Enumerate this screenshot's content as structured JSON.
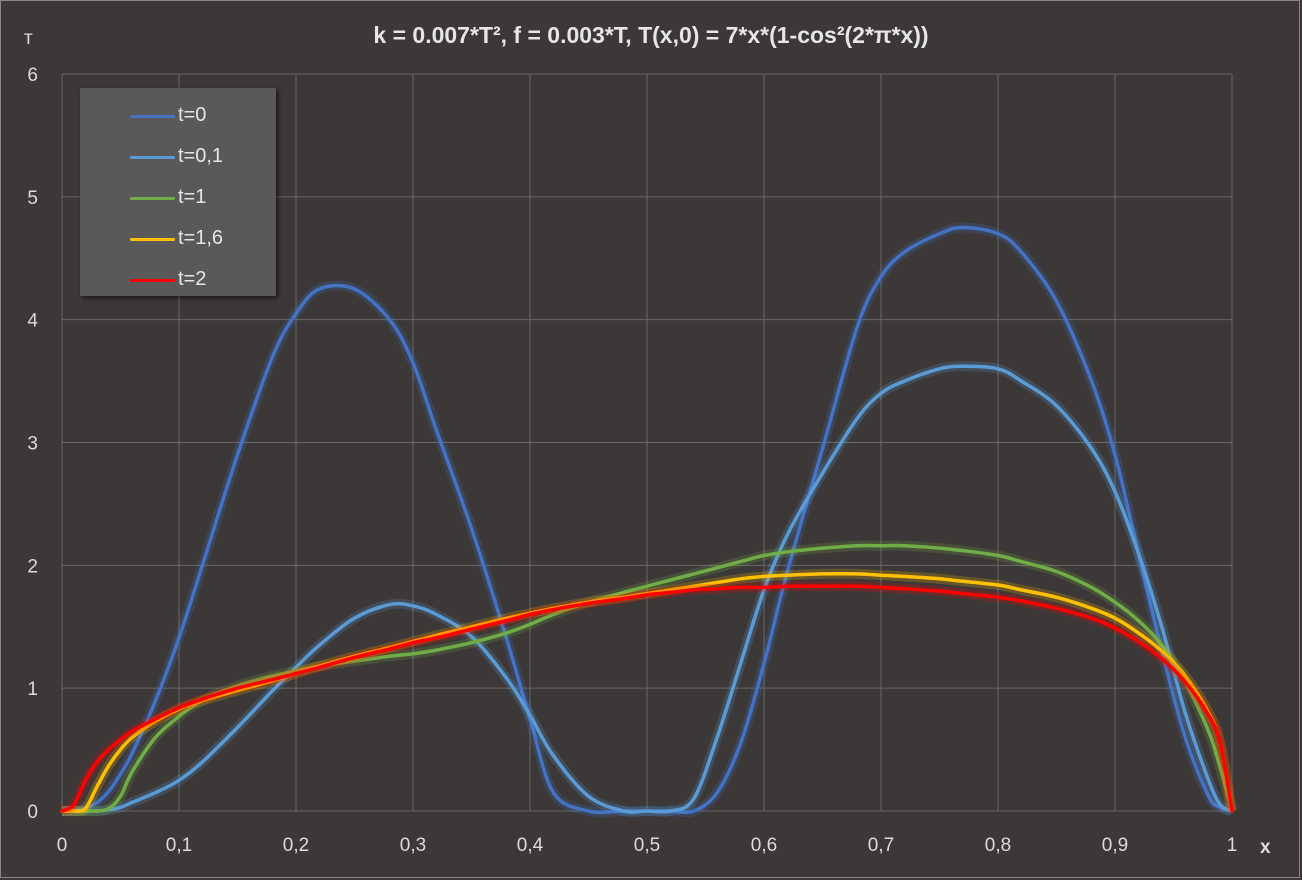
{
  "chart_data": {
    "type": "line",
    "title": "k = 0.007*T², f = 0.003*T,  T(x,0) = 7*x*(1-cos²(2*π*x))",
    "xlabel": "x",
    "ylabel": "т",
    "xlim": [
      0,
      1
    ],
    "ylim": [
      0,
      6
    ],
    "x_ticks": [
      "0",
      "0,1",
      "0,2",
      "0,3",
      "0,4",
      "0,5",
      "0,6",
      "0,7",
      "0,8",
      "0,9",
      "1"
    ],
    "y_ticks": [
      "0",
      "1",
      "2",
      "3",
      "4",
      "5",
      "6"
    ],
    "grid": true,
    "legend_position": "top-left",
    "x": [
      0,
      0.01,
      0.02,
      0.03,
      0.04,
      0.05,
      0.06,
      0.08,
      0.1,
      0.12,
      0.15,
      0.18,
      0.2,
      0.22,
      0.25,
      0.28,
      0.3,
      0.32,
      0.35,
      0.38,
      0.4,
      0.42,
      0.45,
      0.48,
      0.5,
      0.52,
      0.54,
      0.56,
      0.58,
      0.6,
      0.62,
      0.65,
      0.68,
      0.7,
      0.72,
      0.75,
      0.77,
      0.8,
      0.82,
      0.85,
      0.88,
      0.9,
      0.92,
      0.94,
      0.96,
      0.98,
      0.99,
      1
    ],
    "series": [
      {
        "name": "t=0",
        "color": "#4472c4",
        "values": [
          0,
          0.003,
          0.022,
          0.07,
          0.16,
          0.3,
          0.47,
          0.9,
          1.41,
          2.0,
          2.9,
          3.7,
          4.05,
          4.25,
          4.25,
          4.0,
          3.65,
          3.1,
          2.3,
          1.4,
          0.75,
          0.15,
          0.0,
          0.0,
          0.0,
          0.0,
          0.0,
          0.15,
          0.55,
          1.2,
          1.95,
          2.95,
          3.95,
          4.35,
          4.55,
          4.7,
          4.75,
          4.7,
          4.55,
          4.15,
          3.5,
          2.9,
          2.1,
          1.3,
          0.6,
          0.12,
          0.03,
          0
        ]
      },
      {
        "name": "t=0,1",
        "color": "#5b9bd5",
        "values": [
          0,
          0,
          0,
          0,
          0.01,
          0.03,
          0.07,
          0.15,
          0.25,
          0.4,
          0.68,
          0.98,
          1.17,
          1.35,
          1.57,
          1.68,
          1.67,
          1.6,
          1.42,
          1.08,
          0.78,
          0.45,
          0.12,
          0.0,
          0.0,
          0.0,
          0.1,
          0.6,
          1.2,
          1.8,
          2.25,
          2.75,
          3.2,
          3.4,
          3.5,
          3.6,
          3.62,
          3.6,
          3.5,
          3.3,
          2.95,
          2.6,
          2.1,
          1.5,
          0.8,
          0.25,
          0.05,
          0
        ]
      },
      {
        "name": "t=1",
        "color": "#70ad47",
        "values": [
          0,
          0,
          0,
          0,
          0.02,
          0.12,
          0.32,
          0.6,
          0.77,
          0.9,
          1.02,
          1.1,
          1.14,
          1.18,
          1.22,
          1.26,
          1.28,
          1.31,
          1.37,
          1.45,
          1.52,
          1.6,
          1.7,
          1.78,
          1.83,
          1.88,
          1.93,
          1.98,
          2.03,
          2.08,
          2.11,
          2.14,
          2.16,
          2.16,
          2.16,
          2.14,
          2.12,
          2.08,
          2.03,
          1.95,
          1.82,
          1.7,
          1.55,
          1.35,
          1.05,
          0.65,
          0.35,
          0
        ]
      },
      {
        "name": "t=1,6",
        "color": "#ffc000",
        "values": [
          0,
          0,
          0.02,
          0.2,
          0.37,
          0.5,
          0.6,
          0.73,
          0.83,
          0.9,
          0.98,
          1.06,
          1.12,
          1.18,
          1.26,
          1.33,
          1.38,
          1.43,
          1.5,
          1.57,
          1.61,
          1.65,
          1.7,
          1.74,
          1.77,
          1.8,
          1.83,
          1.86,
          1.89,
          1.91,
          1.92,
          1.93,
          1.93,
          1.92,
          1.91,
          1.89,
          1.87,
          1.84,
          1.8,
          1.74,
          1.65,
          1.57,
          1.45,
          1.3,
          1.1,
          0.8,
          0.55,
          0
        ]
      },
      {
        "name": "t=2",
        "color": "#ff0000",
        "values": [
          0,
          0.05,
          0.25,
          0.4,
          0.5,
          0.58,
          0.65,
          0.75,
          0.84,
          0.91,
          1.0,
          1.07,
          1.12,
          1.17,
          1.25,
          1.32,
          1.37,
          1.41,
          1.48,
          1.55,
          1.6,
          1.64,
          1.69,
          1.73,
          1.76,
          1.78,
          1.8,
          1.81,
          1.82,
          1.82,
          1.83,
          1.83,
          1.83,
          1.82,
          1.81,
          1.79,
          1.77,
          1.74,
          1.71,
          1.65,
          1.57,
          1.49,
          1.38,
          1.24,
          1.05,
          0.78,
          0.55,
          0
        ]
      }
    ]
  }
}
